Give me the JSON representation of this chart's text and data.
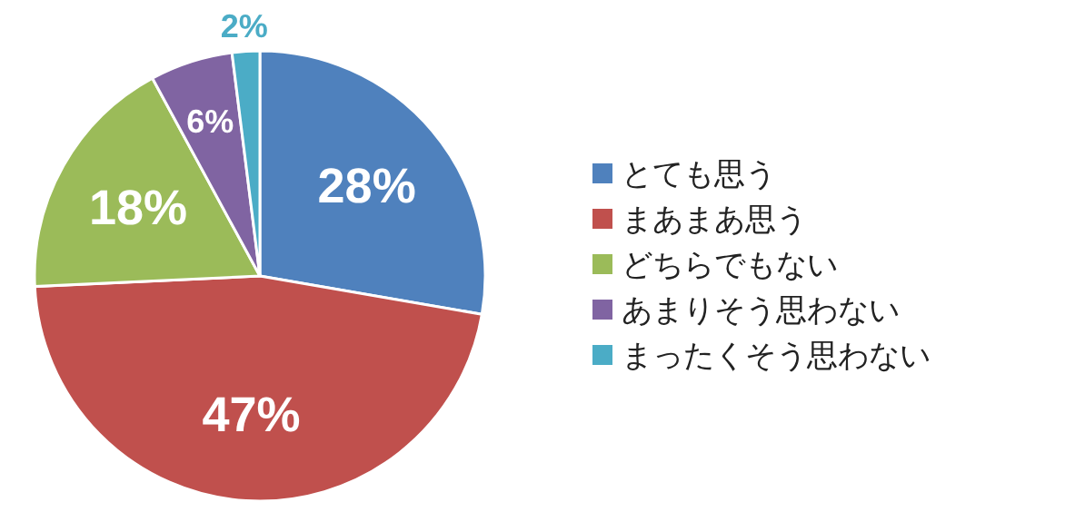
{
  "chart_data": {
    "type": "pie",
    "categories": [
      "とても思う",
      "まあまあ思う",
      "どちらでもない",
      "あまりそう思わない",
      "まったくそう思わない"
    ],
    "values": [
      28,
      47,
      18,
      6,
      2
    ],
    "colors": [
      "#4f81bd",
      "#c0504d",
      "#9bbb59",
      "#8064a2",
      "#4bacc6"
    ],
    "value_labels": [
      "28%",
      "47%",
      "18%",
      "6%",
      "2%"
    ],
    "legend": "right"
  }
}
